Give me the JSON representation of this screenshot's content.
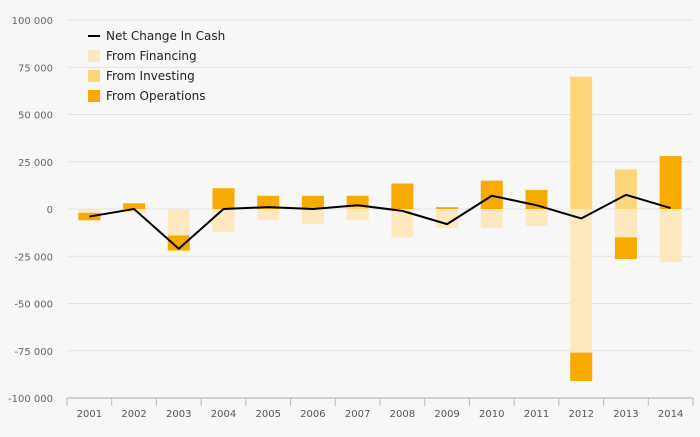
{
  "chart_data": {
    "type": "bar",
    "stacked": true,
    "categories": [
      "2001",
      "2002",
      "2003",
      "2004",
      "2005",
      "2006",
      "2007",
      "2008",
      "2009",
      "2010",
      "2011",
      "2012",
      "2013",
      "2014"
    ],
    "series": [
      {
        "name": "Net Change In Cash",
        "kind": "line",
        "color": "#000000",
        "values": [
          -4000,
          0,
          -21000,
          0,
          1000,
          0,
          2000,
          -1000,
          -8000,
          7000,
          2000,
          -5000,
          7500,
          500
        ]
      },
      {
        "name": "From Financing",
        "kind": "bar",
        "color": "#fde8c0",
        "values": [
          -2000,
          -2000,
          -14000,
          -12000,
          -6000,
          -8000,
          -6000,
          -15000,
          -10000,
          -10000,
          -9000,
          -76000,
          -15000,
          -28000
        ]
      },
      {
        "name": "From Investing",
        "kind": "bar",
        "color": "#fdd57a",
        "values": [
          0,
          0,
          0,
          0,
          0,
          0,
          1000,
          0,
          0,
          0,
          0,
          70000,
          21000,
          0
        ]
      },
      {
        "name": "From Operations",
        "kind": "bar",
        "color": "#f7ab00",
        "values": [
          -4000,
          3000,
          -8000,
          11000,
          7000,
          7000,
          6000,
          13500,
          1000,
          15000,
          10000,
          -15000,
          -11500,
          28000
        ]
      }
    ],
    "y_ticks": [
      100000,
      75000,
      50000,
      25000,
      0,
      -25000,
      -50000,
      -75000,
      -100000
    ],
    "y_tick_labels": [
      "100 000",
      "75 000",
      "50 000",
      "25 000",
      "0",
      "-25 000",
      "-50 000",
      "-75 000",
      "-100 000"
    ],
    "ylim": [
      -100000,
      100000
    ],
    "grid": true,
    "legend_position": "top-left"
  }
}
